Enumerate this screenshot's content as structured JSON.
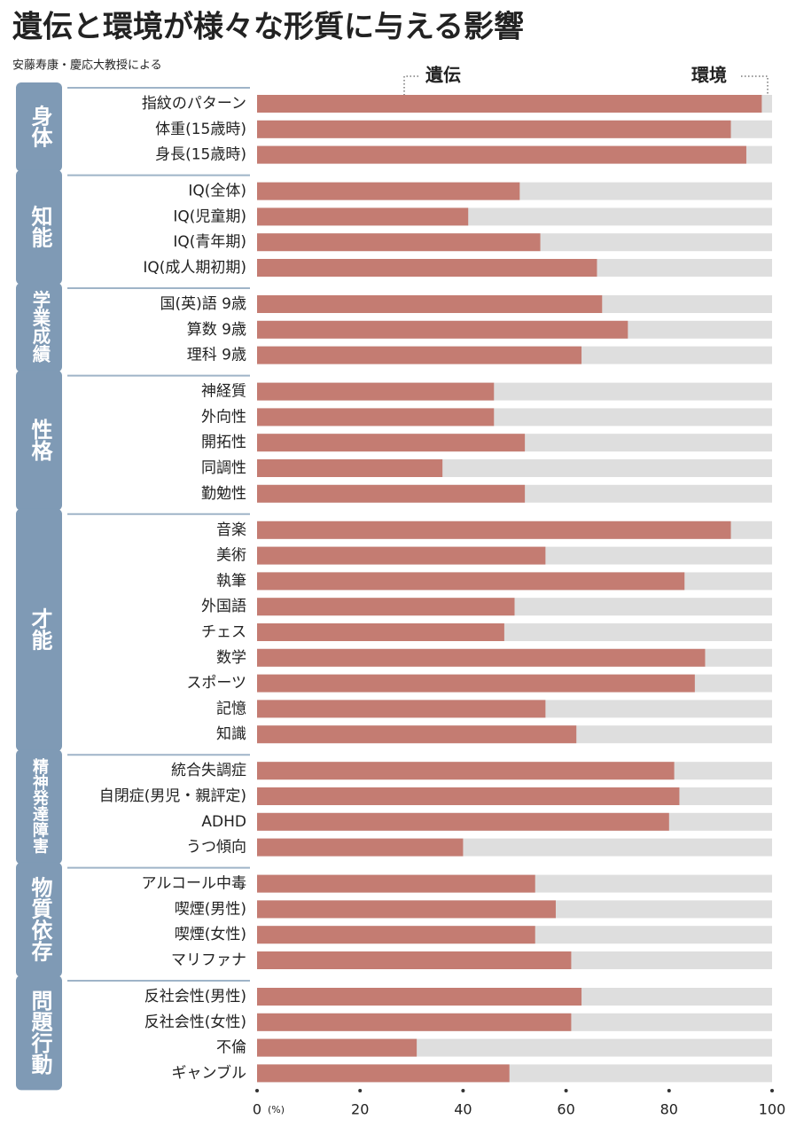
{
  "chart_data": {
    "type": "bar",
    "title": "遺伝と環境が様々な形質に与える影響",
    "subtitle": "安藤寿康・慶応大教授による",
    "series": [
      {
        "name": "遺伝",
        "color": "#c47c72"
      },
      {
        "name": "環境",
        "color": "#dedede"
      }
    ],
    "x_unit": "(%)",
    "xlim": [
      0,
      100
    ],
    "xticks": [
      0,
      20,
      40,
      60,
      80,
      100
    ],
    "groups": [
      {
        "name": "身体",
        "categories": [
          "指紋のパターン",
          "体重(15歳時)",
          "身長(15歳時)"
        ],
        "values": [
          98,
          92,
          95
        ]
      },
      {
        "name": "知能",
        "categories": [
          "IQ(全体)",
          "IQ(児童期)",
          "IQ(青年期)",
          "IQ(成人期初期)"
        ],
        "values": [
          51,
          41,
          55,
          66
        ]
      },
      {
        "name": "学業成績",
        "categories": [
          "国(英)語 9歳",
          "算数 9歳",
          "理科 9歳"
        ],
        "values": [
          67,
          72,
          63
        ]
      },
      {
        "name": "性格",
        "categories": [
          "神経質",
          "外向性",
          "開拓性",
          "同調性",
          "勤勉性"
        ],
        "values": [
          46,
          46,
          52,
          36,
          52
        ]
      },
      {
        "name": "才能",
        "categories": [
          "音楽",
          "美術",
          "執筆",
          "外国語",
          "チェス",
          "数学",
          "スポーツ",
          "記憶",
          "知識"
        ],
        "values": [
          92,
          56,
          83,
          50,
          48,
          87,
          85,
          56,
          62
        ]
      },
      {
        "name": "精神発達障害",
        "categories": [
          "統合失調症",
          "自閉症(男児・親評定)",
          "ADHD",
          "うつ傾向"
        ],
        "values": [
          81,
          82,
          80,
          40
        ]
      },
      {
        "name": "物質依存",
        "categories": [
          "アルコール中毒",
          "喫煙(男性)",
          "喫煙(女性)",
          "マリファナ"
        ],
        "values": [
          54,
          58,
          54,
          61
        ]
      },
      {
        "name": "問題行動",
        "categories": [
          "反社会性(男性)",
          "反社会性(女性)",
          "不倫",
          "ギャンブル"
        ],
        "values": [
          63,
          61,
          31,
          49
        ]
      }
    ]
  }
}
